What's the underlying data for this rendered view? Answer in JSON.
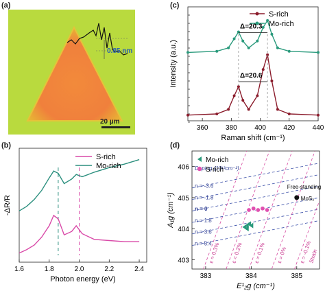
{
  "panels": {
    "a": {
      "letter": "(a)",
      "height_label": "0.85 nm",
      "scale_label": "20 µm"
    },
    "b": {
      "letter": "(b)",
      "chart_data": {
        "type": "line",
        "xlabel": "Photon energy (eV)",
        "ylabel": "-ΔR/R",
        "xlim": [
          1.6,
          2.45
        ],
        "xticks": [
          "1.6",
          "1.8",
          "2.0",
          "2.2",
          "2.4"
        ],
        "legend_placement": "top-right",
        "series": [
          {
            "name": "S-rich",
            "color": "#d94aa8",
            "x": [
              1.6,
              1.65,
              1.7,
              1.75,
              1.8,
              1.83,
              1.86,
              1.9,
              1.95,
              1.98,
              2.02,
              2.1,
              2.2,
              2.3,
              2.4
            ],
            "y": [
              0.08,
              0.11,
              0.15,
              0.22,
              0.32,
              0.41,
              0.38,
              0.24,
              0.27,
              0.32,
              0.25,
              0.2,
              0.19,
              0.18,
              0.18
            ]
          },
          {
            "name": "Mo-rich",
            "color": "#2b8f7e",
            "x": [
              1.6,
              1.65,
              1.7,
              1.75,
              1.8,
              1.83,
              1.86,
              1.9,
              1.95,
              1.98,
              2.02,
              2.1,
              2.2,
              2.3,
              2.4
            ],
            "y": [
              0.45,
              0.49,
              0.55,
              0.63,
              0.74,
              0.8,
              0.78,
              0.69,
              0.73,
              0.77,
              0.75,
              0.79,
              0.83,
              0.86,
              0.9
            ]
          }
        ],
        "markers": [
          1.86,
          2.0
        ]
      }
    },
    "c": {
      "letter": "(c)",
      "chart_data": {
        "type": "line",
        "xlabel": "Raman shift (cm⁻¹)",
        "ylabel": "Intensity (a.u.)",
        "xlim": [
          350,
          440
        ],
        "xticks": [
          "360",
          "380",
          "400",
          "420",
          "440"
        ],
        "legend_placement": "top-right",
        "series": [
          {
            "name": "S-rich",
            "color": "#8b1c2c",
            "x": [
              350,
              370,
              378,
              382,
              385,
              388,
              392,
              398,
              402,
              405,
              408,
              412,
              420,
              440
            ],
            "y": [
              0.05,
              0.06,
              0.1,
              0.22,
              0.3,
              0.18,
              0.1,
              0.22,
              0.45,
              0.58,
              0.35,
              0.1,
              0.06,
              0.05
            ]
          },
          {
            "name": "Mo-rich",
            "color": "#2a9a7c",
            "x": [
              350,
              370,
              378,
              382,
              385,
              388,
              392,
              398,
              402,
              405,
              408,
              412,
              420,
              440
            ],
            "y": [
              0.6,
              0.61,
              0.64,
              0.72,
              0.78,
              0.7,
              0.64,
              0.7,
              0.82,
              0.88,
              0.76,
              0.64,
              0.61,
              0.6
            ]
          }
        ],
        "annotations": [
          "Δ=20.3",
          "Δ=20.6"
        ]
      }
    },
    "d": {
      "letter": "(d)",
      "chart_data": {
        "type": "scatter",
        "xlabel": "E¹₂g (cm⁻¹)",
        "ylabel": "A₁g (cm⁻¹)",
        "xlim": [
          382.7,
          385.5
        ],
        "ylim": [
          402.7,
          406.5
        ],
        "xticks": [
          "383",
          "384",
          "385"
        ],
        "yticks": [
          "403",
          "404",
          "405",
          "406"
        ],
        "legend_placement": "top-left",
        "series": [
          {
            "name": "Mo-rich",
            "color": "#2a9a7c",
            "x": [
              383.85,
              383.9,
              383.95,
              384.0,
              383.9
            ],
            "y": [
              404.05,
              404.1,
              404.15,
              404.1,
              404.0
            ]
          },
          {
            "name": "S-rich",
            "color": "#e050b0",
            "x": [
              383.95,
              384.05,
              384.15,
              384.25,
              384.35
            ],
            "y": [
              404.6,
              404.65,
              404.6,
              404.65,
              404.6
            ]
          }
        ],
        "freestanding": {
          "label": "Free-standing",
          "sub": "MoS₂",
          "x": 385.0,
          "y": 405.0
        },
        "doping_title": "Doping (10¹³cm⁻²)",
        "doping_labels": [
          "n = -3.6",
          "n = -1.8",
          "n = 0",
          "n = 1.8",
          "n = 3.6",
          "n = 5.4"
        ],
        "strain_title": "Strain",
        "strain_labels": [
          "ε = 0.3%",
          "ε = 0.2%",
          "ε = 0.1%",
          "ε = 0%",
          "ε = -0.1%"
        ]
      }
    }
  }
}
